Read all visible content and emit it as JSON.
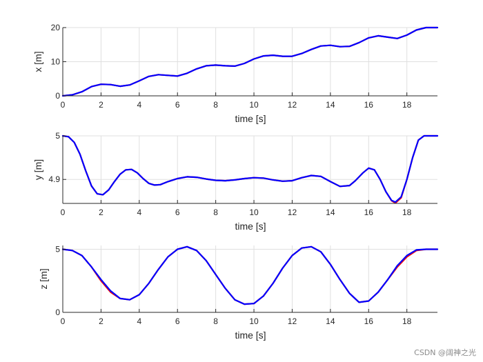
{
  "chart_data": [
    {
      "type": "line",
      "xlabel": "time [s]",
      "ylabel": "x [m]",
      "xlim": [
        0,
        19.6
      ],
      "ylim": [
        0,
        20
      ],
      "xticks": [
        0,
        2,
        4,
        6,
        8,
        10,
        12,
        14,
        16,
        18
      ],
      "yticks": [
        0,
        10,
        20
      ],
      "grid": true,
      "series": [
        {
          "color": "#ff0000",
          "x": [
            0,
            0.5,
            1,
            1.5,
            2,
            2.5,
            3,
            3.5,
            4,
            4.5,
            5,
            5.5,
            6,
            6.5,
            7,
            7.5,
            8,
            8.5,
            9,
            9.5,
            10,
            10.5,
            11,
            11.5,
            12,
            12.5,
            13,
            13.5,
            14,
            14.5,
            15,
            15.5,
            16,
            16.5,
            17,
            17.5,
            18,
            18.5,
            19,
            19.6
          ],
          "y": [
            0,
            0.3,
            1.2,
            2.7,
            3.4,
            3.3,
            2.8,
            3.2,
            4.4,
            5.7,
            6.2,
            6.0,
            5.8,
            6.6,
            7.9,
            8.8,
            9.0,
            8.8,
            8.7,
            9.5,
            10.8,
            11.7,
            11.9,
            11.6,
            11.6,
            12.4,
            13.6,
            14.6,
            14.8,
            14.4,
            14.5,
            15.6,
            17.0,
            17.6,
            17.2,
            16.8,
            17.8,
            19.3,
            20.0,
            20.0
          ]
        },
        {
          "color": "#0000ff",
          "x": [
            0,
            0.5,
            1,
            1.5,
            2,
            2.5,
            3,
            3.5,
            4,
            4.5,
            5,
            5.5,
            6,
            6.5,
            7,
            7.5,
            8,
            8.5,
            9,
            9.5,
            10,
            10.5,
            11,
            11.5,
            12,
            12.5,
            13,
            13.5,
            14,
            14.5,
            15,
            15.5,
            16,
            16.5,
            17,
            17.5,
            18,
            18.5,
            19,
            19.6
          ],
          "y": [
            0,
            0.3,
            1.2,
            2.7,
            3.4,
            3.3,
            2.8,
            3.2,
            4.4,
            5.7,
            6.2,
            6.0,
            5.8,
            6.6,
            7.9,
            8.8,
            9.0,
            8.8,
            8.7,
            9.5,
            10.8,
            11.7,
            11.9,
            11.6,
            11.6,
            12.4,
            13.6,
            14.6,
            14.8,
            14.4,
            14.5,
            15.6,
            17.0,
            17.6,
            17.2,
            16.8,
            17.8,
            19.3,
            20.0,
            20.0
          ]
        }
      ]
    },
    {
      "type": "line",
      "xlabel": "time [s]",
      "ylabel": "y [m]",
      "xlim": [
        0,
        19.6
      ],
      "ylim": [
        4.845,
        5.0
      ],
      "xticks": [
        0,
        2,
        4,
        6,
        8,
        10,
        12,
        14,
        16,
        18
      ],
      "yticks": [
        4.9,
        5
      ],
      "grid": true,
      "series": [
        {
          "color": "#ff0000",
          "x": [
            0,
            0.3,
            0.6,
            0.9,
            1.2,
            1.5,
            1.8,
            2.1,
            2.4,
            2.7,
            3.0,
            3.3,
            3.6,
            3.9,
            4.2,
            4.5,
            4.8,
            5.1,
            5.5,
            6.0,
            6.5,
            7.0,
            7.5,
            8.0,
            8.5,
            9.0,
            9.5,
            10.0,
            10.5,
            11.0,
            11.5,
            12.0,
            12.5,
            13.0,
            13.5,
            14.0,
            14.5,
            15.0,
            15.3,
            15.7,
            16.0,
            16.3,
            16.6,
            16.9,
            17.2,
            17.4,
            17.7,
            18.0,
            18.3,
            18.6,
            18.9,
            19.2,
            19.6
          ],
          "y": [
            5.0,
            4.998,
            4.985,
            4.958,
            4.92,
            4.885,
            4.867,
            4.865,
            4.876,
            4.895,
            4.912,
            4.922,
            4.923,
            4.915,
            4.902,
            4.891,
            4.887,
            4.888,
            4.895,
            4.902,
            4.906,
            4.905,
            4.901,
            4.898,
            4.897,
            4.899,
            4.902,
            4.904,
            4.903,
            4.899,
            4.896,
            4.897,
            4.904,
            4.909,
            4.907,
            4.895,
            4.884,
            4.886,
            4.897,
            4.915,
            4.926,
            4.922,
            4.9,
            4.872,
            4.851,
            4.846,
            4.858,
            4.9,
            4.95,
            4.99,
            5.0,
            5.0,
            5.0
          ]
        },
        {
          "color": "#0000ff",
          "x": [
            0,
            0.3,
            0.6,
            0.9,
            1.2,
            1.5,
            1.8,
            2.1,
            2.4,
            2.7,
            3.0,
            3.3,
            3.6,
            3.9,
            4.2,
            4.5,
            4.8,
            5.1,
            5.5,
            6.0,
            6.5,
            7.0,
            7.5,
            8.0,
            8.5,
            9.0,
            9.5,
            10.0,
            10.5,
            11.0,
            11.5,
            12.0,
            12.5,
            13.0,
            13.5,
            14.0,
            14.5,
            15.0,
            15.3,
            15.7,
            16.0,
            16.3,
            16.6,
            16.9,
            17.2,
            17.4,
            17.7,
            18.0,
            18.3,
            18.6,
            18.9,
            19.2,
            19.6
          ],
          "y": [
            5.0,
            4.998,
            4.985,
            4.958,
            4.92,
            4.885,
            4.867,
            4.865,
            4.876,
            4.895,
            4.912,
            4.922,
            4.923,
            4.915,
            4.902,
            4.891,
            4.887,
            4.888,
            4.895,
            4.902,
            4.906,
            4.905,
            4.901,
            4.898,
            4.897,
            4.899,
            4.902,
            4.904,
            4.903,
            4.899,
            4.896,
            4.897,
            4.904,
            4.909,
            4.907,
            4.895,
            4.884,
            4.886,
            4.897,
            4.915,
            4.926,
            4.922,
            4.9,
            4.872,
            4.852,
            4.848,
            4.86,
            4.9,
            4.95,
            4.99,
            5.0,
            5.0,
            5.0
          ]
        }
      ]
    },
    {
      "type": "line",
      "xlabel": "time [s]",
      "ylabel": "z [m]",
      "xlim": [
        0,
        19.6
      ],
      "ylim": [
        0,
        5.3
      ],
      "xticks": [
        0,
        2,
        4,
        6,
        8,
        10,
        12,
        14,
        16,
        18
      ],
      "yticks": [
        0,
        5
      ],
      "grid": true,
      "series": [
        {
          "color": "#ff0000",
          "x": [
            0,
            0.5,
            1.0,
            1.5,
            2.0,
            2.5,
            3.0,
            3.5,
            4.0,
            4.5,
            5.0,
            5.5,
            6.0,
            6.5,
            7.0,
            7.5,
            8.0,
            8.5,
            9.0,
            9.5,
            10.0,
            10.5,
            11.0,
            11.5,
            12.0,
            12.5,
            13.0,
            13.5,
            14.0,
            14.5,
            15.0,
            15.5,
            16.0,
            16.5,
            17.0,
            17.5,
            18.0,
            18.5,
            19.0,
            19.6
          ],
          "y": [
            5.0,
            4.9,
            4.5,
            3.6,
            2.5,
            1.6,
            1.1,
            1.0,
            1.4,
            2.3,
            3.4,
            4.4,
            5.0,
            5.2,
            4.9,
            4.1,
            3.0,
            1.9,
            1.0,
            0.65,
            0.7,
            1.3,
            2.3,
            3.5,
            4.5,
            5.1,
            5.2,
            4.8,
            3.8,
            2.6,
            1.5,
            0.8,
            0.9,
            1.6,
            2.6,
            3.6,
            4.4,
            4.9,
            5.0,
            5.0
          ]
        },
        {
          "color": "#0000ff",
          "x": [
            0,
            0.5,
            1.0,
            1.5,
            2.0,
            2.5,
            3.0,
            3.5,
            4.0,
            4.5,
            5.0,
            5.5,
            6.0,
            6.5,
            7.0,
            7.5,
            8.0,
            8.5,
            9.0,
            9.5,
            10.0,
            10.5,
            11.0,
            11.5,
            12.0,
            12.5,
            13.0,
            13.5,
            14.0,
            14.5,
            15.0,
            15.5,
            16.0,
            16.5,
            17.0,
            17.5,
            18.0,
            18.5,
            19.0,
            19.6
          ],
          "y": [
            5.0,
            4.9,
            4.5,
            3.6,
            2.6,
            1.7,
            1.1,
            1.0,
            1.4,
            2.3,
            3.4,
            4.4,
            5.0,
            5.2,
            4.9,
            4.1,
            3.0,
            1.9,
            1.0,
            0.65,
            0.7,
            1.3,
            2.3,
            3.5,
            4.5,
            5.1,
            5.2,
            4.8,
            3.8,
            2.6,
            1.5,
            0.8,
            0.9,
            1.6,
            2.6,
            3.7,
            4.5,
            4.95,
            5.0,
            5.0
          ]
        }
      ]
    }
  ],
  "watermark": "CSDN @阔神之光"
}
